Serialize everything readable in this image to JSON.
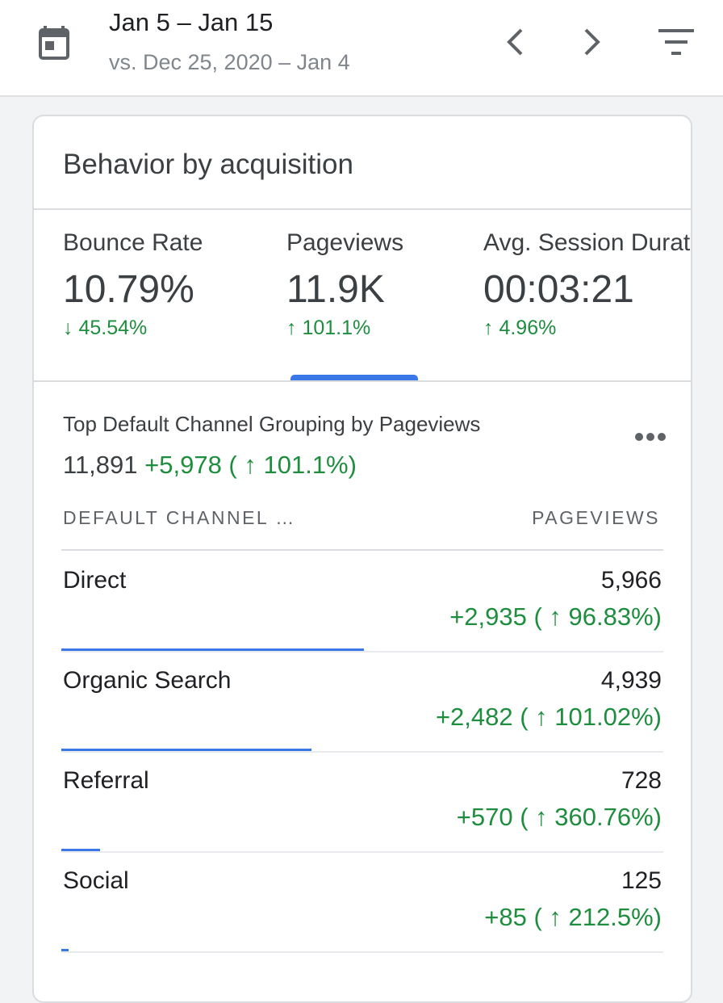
{
  "header": {
    "date_range": "Jan 5 – Jan 15",
    "compare_range": "vs. Dec 25, 2020 – Jan 4",
    "icons": [
      "calendar-icon",
      "chevron-left-icon",
      "chevron-right-icon",
      "filter-icon"
    ]
  },
  "card": {
    "title": "Behavior by acquisition",
    "metrics": [
      {
        "label": "Bounce Rate",
        "value": "10.79%",
        "change": "↓ 45.54%"
      },
      {
        "label": "Pageviews",
        "value": "11.9K",
        "change": "↑ 101.1%",
        "selected": true
      },
      {
        "label": "Avg. Session Duration",
        "value": "00:03:21",
        "change": "↑ 4.96%"
      }
    ],
    "section": {
      "title": "Top Default Channel Grouping by Pageviews",
      "total": "11,891",
      "total_change": "+5,978 ( ↑ 101.1%)",
      "column_left": "DEFAULT CHANNEL …",
      "column_right": "PAGEVIEWS",
      "rows": [
        {
          "name": "Direct",
          "value": "5,966",
          "change": "+2,935 ( ↑ 96.83%)",
          "share": 0.503
        },
        {
          "name": "Organic Search",
          "value": "4,939",
          "change": "+2,482 ( ↑ 101.02%)",
          "share": 0.415
        },
        {
          "name": "Referral",
          "value": "728",
          "change": "+570 ( ↑ 360.76%)",
          "share": 0.064
        },
        {
          "name": "Social",
          "value": "125",
          "change": "+85 ( ↑ 212.5%)",
          "share": 0.012
        }
      ]
    }
  },
  "colors": {
    "accent": "#3b78e7",
    "positive": "#1e8e3e",
    "text": "#202124",
    "muted": "#80868b"
  }
}
